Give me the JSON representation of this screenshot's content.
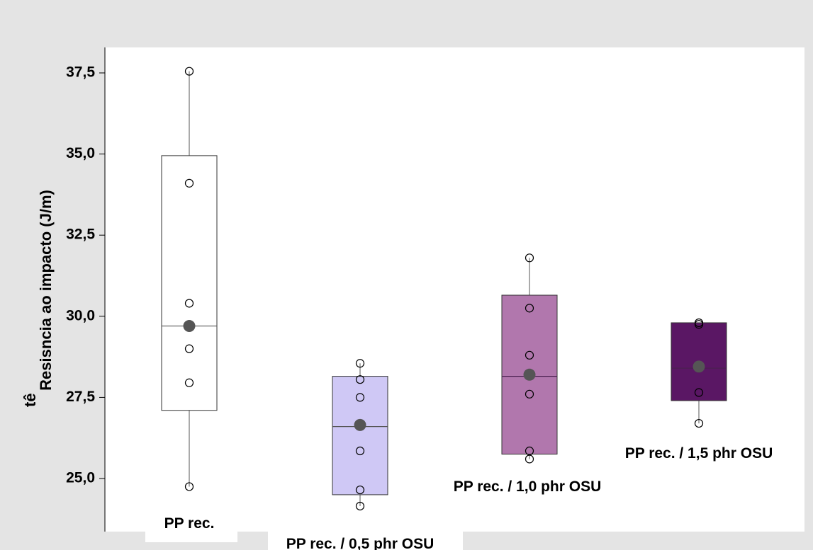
{
  "chart_data": {
    "type": "boxplot",
    "ylabel": "Resistência ao impacto (J/m)",
    "ylabel_parts": [
      "Resis",
      "tê",
      "ncia ao impacto (J/m)"
    ],
    "y_ticks": [
      25.0,
      27.5,
      30.0,
      32.5,
      35.0,
      37.5
    ],
    "y_tick_labels": [
      "25,0",
      "27,5",
      "30,0",
      "32,5",
      "35,0",
      "37,5"
    ],
    "ylim": [
      23.5,
      39.0
    ],
    "grid": false,
    "categories": [
      "PP rec.",
      "PP rec. / 0,5 phr OSU",
      "PP rec. / 1,0 phr OSU",
      "PP rec. / 1,5 phr OSU"
    ],
    "colors": [
      "#ffffff",
      "#cfc8f5",
      "#b177ad",
      "#5a1764"
    ],
    "mean_marker_color": "#555555",
    "series": [
      {
        "q1": 27.1,
        "median": 29.7,
        "q3": 34.95,
        "whisker_low": 24.75,
        "whisker_high": 37.55,
        "mean": 29.7,
        "points": [
          37.55,
          34.1,
          30.4,
          29.0,
          27.95,
          24.75
        ]
      },
      {
        "q1": 24.5,
        "median": 26.6,
        "q3": 28.15,
        "whisker_low": 24.15,
        "whisker_high": 28.55,
        "mean": 26.65,
        "points": [
          28.55,
          28.05,
          27.5,
          25.85,
          24.65,
          24.15
        ]
      },
      {
        "q1": 25.75,
        "median": 28.15,
        "q3": 30.65,
        "whisker_low": 25.6,
        "whisker_high": 31.8,
        "mean": 28.2,
        "points": [
          31.8,
          30.25,
          28.8,
          27.6,
          25.85,
          25.6
        ]
      },
      {
        "q1": 27.4,
        "median": 28.4,
        "q3": 29.8,
        "whisker_low": 26.7,
        "whisker_high": 29.8,
        "mean": 28.45,
        "points": [
          29.8,
          29.75,
          28.45,
          28.4,
          27.65,
          26.7
        ]
      }
    ]
  }
}
